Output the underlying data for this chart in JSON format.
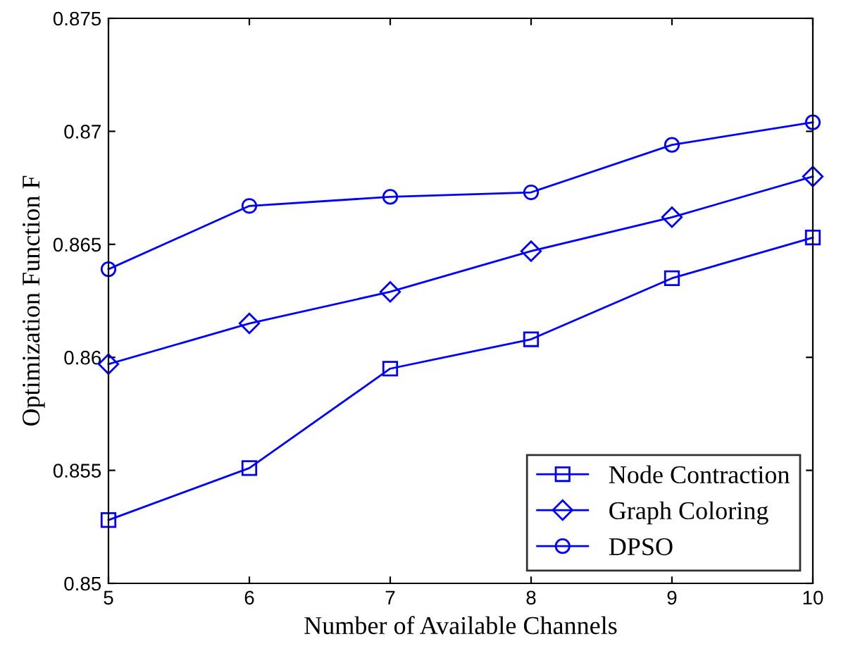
{
  "chart_data": {
    "type": "line",
    "xlabel": "Number of Available Channels",
    "ylabel": "Optimization Function F",
    "x": [
      5,
      6,
      7,
      8,
      9,
      10
    ],
    "series": [
      {
        "name": "Node Contraction",
        "color": "#0000ff",
        "marker": "square",
        "values": [
          0.8528,
          0.8551,
          0.8595,
          0.8608,
          0.8635,
          0.8653
        ]
      },
      {
        "name": "Graph Coloring",
        "color": "#0000ff",
        "marker": "diamond",
        "values": [
          0.8597,
          0.8615,
          0.8629,
          0.8647,
          0.8662,
          0.868
        ]
      },
      {
        "name": "DPSO",
        "color": "#0000ff",
        "marker": "circle",
        "values": [
          0.8639,
          0.8667,
          0.8671,
          0.8673,
          0.8694,
          0.8704
        ]
      }
    ],
    "xlim": [
      5,
      10
    ],
    "xticks": [
      5,
      6,
      7,
      8,
      9,
      10
    ],
    "ylim": [
      0.85,
      0.875
    ],
    "yticks": [
      0.85,
      {
        "value": 0.855,
        "label": "0.855"
      },
      {
        "value": 0.86,
        "label": "0.86"
      },
      {
        "value": 0.865,
        "label": "0.865"
      },
      {
        "value": 0.87,
        "label": "0.87"
      },
      {
        "value": 0.875,
        "label": "0.875"
      }
    ],
    "grid": false,
    "legend": "bottom right",
    "line_style": "solid"
  }
}
